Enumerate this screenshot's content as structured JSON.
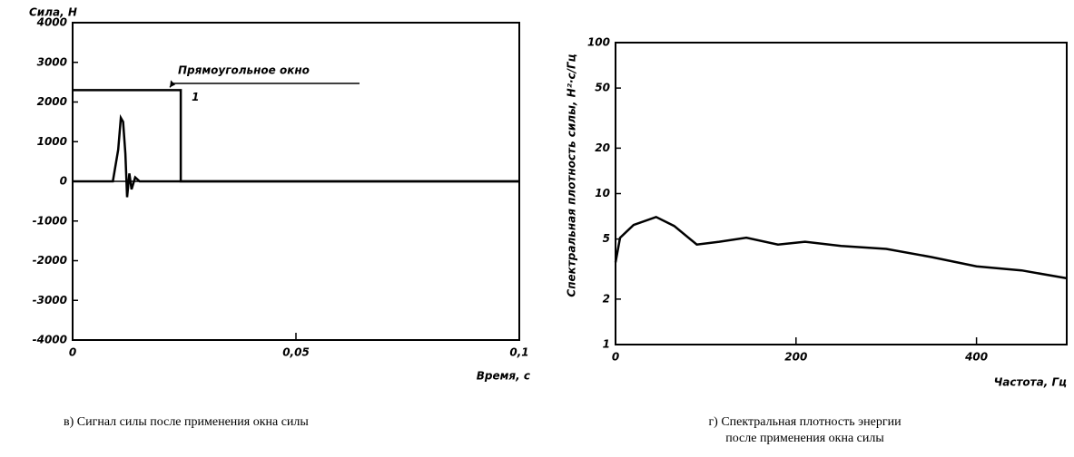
{
  "chart_data": [
    {
      "type": "line",
      "ylabel": "Сила, Н",
      "xlabel": "Время, с",
      "caption": "в) Сигнал силы после применения окна силы",
      "annotations": [
        "Прямоугольное окно",
        "1"
      ],
      "xlim": [
        0,
        0.1
      ],
      "xticks": [
        0,
        {
          "value": 0.05,
          "label": "0,05"
        },
        {
          "value": 0.1,
          "label": "0,1"
        }
      ],
      "ylim": [
        -4000,
        4000
      ],
      "yticks": [
        -4000,
        -3000,
        -2000,
        -1000,
        0,
        1000,
        2000,
        3000,
        4000
      ],
      "series": [
        {
          "color": "#000000",
          "x": [
            0,
            0.009,
            0.0102,
            0.0108,
            0.0113,
            0.0118,
            0.0122,
            0.0127,
            0.0132,
            0.014,
            0.015,
            0.1
          ],
          "values": [
            0,
            0,
            800,
            1600,
            1500,
            700,
            -400,
            200,
            -200,
            100,
            0,
            0
          ]
        },
        {
          "color": "#000000",
          "x": [
            0,
            0.0242,
            0.0242,
            0.1
          ],
          "values": [
            2300,
            2300,
            0,
            0
          ]
        }
      ]
    },
    {
      "type": "line",
      "ylabel": "Спектральная плотность силы, Н²·с/Гц",
      "xlabel": "Частота, Гц",
      "caption": "г) Спектральная плотность энергии после применения окна силы",
      "log_y": true,
      "xlim": [
        0,
        500
      ],
      "xticks": [
        0,
        200,
        400
      ],
      "ylim": [
        1,
        100
      ],
      "yticks": [
        1,
        2,
        5,
        10,
        20,
        50,
        100
      ],
      "series": [
        {
          "color": "#000000",
          "x": [
            0,
            5,
            20,
            45,
            65,
            90,
            115,
            145,
            180,
            210,
            250,
            300,
            350,
            400,
            450,
            500
          ],
          "values": [
            3.5,
            5.1,
            6.2,
            7,
            6.1,
            4.6,
            4.8,
            5.1,
            4.6,
            4.8,
            4.5,
            4.3,
            3.8,
            3.3,
            3.1,
            2.75
          ]
        }
      ]
    }
  ]
}
